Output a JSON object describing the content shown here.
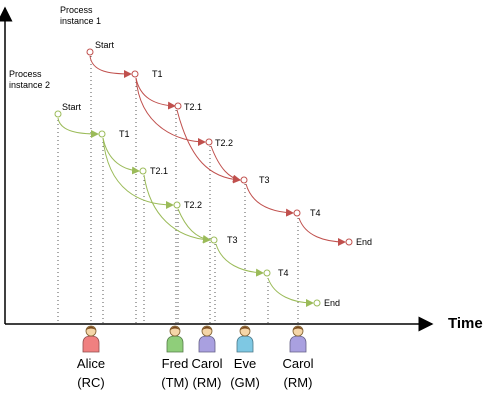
{
  "process1": {
    "label_line1": "Process",
    "label_line2": "instance 1",
    "color": "#c0504d",
    "nodes": {
      "start": "Start",
      "t1": "T1",
      "t21": "T2.1",
      "t22": "T2.2",
      "t3": "T3",
      "t4": "T4",
      "end": "End"
    }
  },
  "process2": {
    "label_line1": "Process",
    "label_line2": "instance 2",
    "color": "#9bbb59",
    "nodes": {
      "start": "Start",
      "t1": "T1",
      "t21": "T2.1",
      "t22": "T2.2",
      "t3": "T3",
      "t4": "T4",
      "end": "End"
    }
  },
  "axis": {
    "time_label": "Time"
  },
  "people": [
    {
      "name": "Alice",
      "role": "(RC)",
      "color": "#f08080"
    },
    {
      "name": "Fred",
      "role": "(TM)",
      "color": "#8fce7a"
    },
    {
      "name": "Carol",
      "role": "(RM)",
      "color": "#a9a0e0"
    },
    {
      "name": "Eve",
      "role": "(GM)",
      "color": "#7ec8e3"
    },
    {
      "name": "Carol",
      "role": "(RM)",
      "color": "#a9a0e0"
    }
  ]
}
